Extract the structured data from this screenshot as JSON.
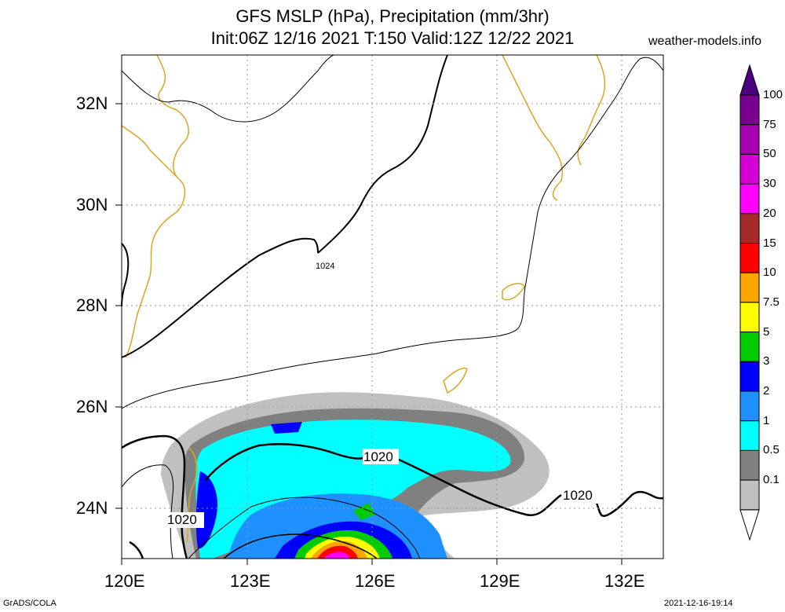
{
  "header": {
    "title_line1": "GFS MSLP (hPa), Precipitation (mm/3hr)",
    "title_line2": "Init:06Z 12/16 2021 T:150 Valid:12Z 12/22 2021",
    "site": "weather-models.info"
  },
  "axes": {
    "lat_labels": [
      "32N",
      "30N",
      "28N",
      "26N",
      "24N"
    ],
    "lon_labels": [
      "120E",
      "123E",
      "126E",
      "129E",
      "132E"
    ]
  },
  "isobars": {
    "labels": [
      "1024",
      "1020",
      "1020",
      "1020"
    ]
  },
  "colorbar": {
    "labels": [
      "100",
      "75",
      "50",
      "30",
      "20",
      "15",
      "10",
      "7.5",
      "5",
      "3",
      "2",
      "1",
      "0.5",
      "0.1"
    ],
    "colors": [
      "#7a0090",
      "#a600b0",
      "#d400d4",
      "#ff00ff",
      "#a52a2a",
      "#ff0000",
      "#ffa500",
      "#ffff00",
      "#00cc00",
      "#0000ff",
      "#1e90ff",
      "#00ffff",
      "#808080",
      "#c0c0c0"
    ]
  },
  "footer": {
    "credit": "GrADS/COLA",
    "timestamp": "2021-12-16-19:14"
  }
}
